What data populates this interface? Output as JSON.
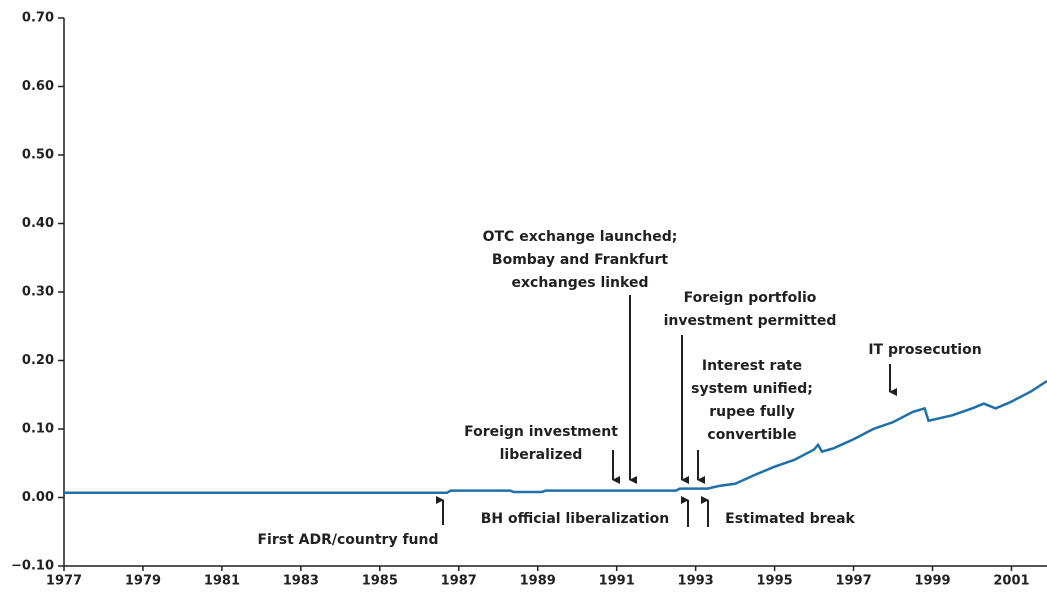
{
  "chart_data": {
    "type": "line",
    "x": [
      1977,
      1986.7,
      1986.8,
      1988.3,
      1988.4,
      1989.1,
      1989.2,
      1992.5,
      1992.6,
      1993.3,
      1993.6,
      1994,
      1994.5,
      1995,
      1995.5,
      1996,
      1996.1,
      1996.2,
      1996.5,
      1997,
      1997.5,
      1998,
      1998.5,
      1998.8,
      1998.9,
      1999.5,
      2000,
      2000.3,
      2000.6,
      2001,
      2001.5,
      2001.9
    ],
    "series": [
      {
        "color": "#1f6fa8",
        "values": [
          0.007,
          0.007,
          0.01,
          0.01,
          0.008,
          0.008,
          0.01,
          0.01,
          0.013,
          0.013,
          0.017,
          0.02,
          0.033,
          0.045,
          0.055,
          0.07,
          0.077,
          0.067,
          0.072,
          0.085,
          0.1,
          0.11,
          0.125,
          0.13,
          0.112,
          0.12,
          0.13,
          0.137,
          0.13,
          0.14,
          0.155,
          0.17
        ]
      }
    ],
    "xlim": [
      1977,
      2001.9
    ],
    "xticks": [
      1977,
      1979,
      1981,
      1983,
      1985,
      1987,
      1989,
      1991,
      1993,
      1995,
      1997,
      1999,
      2001
    ],
    "ylim": [
      -0.1,
      0.7
    ],
    "yticks": [
      {
        "value": -0.1,
        "label": "−0.10"
      },
      {
        "value": 0,
        "label": "0.00"
      },
      {
        "value": 0.1,
        "label": "0.10"
      },
      {
        "value": 0.2,
        "label": "0.20"
      },
      {
        "value": 0.3,
        "label": "0.30"
      },
      {
        "value": 0.4,
        "label": "0.40"
      },
      {
        "value": 0.5,
        "label": "0.50"
      },
      {
        "value": 0.6,
        "label": "0.60"
      },
      {
        "value": 0.7,
        "label": "0.70"
      }
    ],
    "annotations": [
      [
        "First ADR/country fund"
      ],
      [
        "Foreign investment",
        "liberalized"
      ],
      [
        "OTC exchange launched;",
        "Bombay and Frankfurt",
        "exchanges linked"
      ],
      [
        "Foreign portfolio",
        "investment permitted"
      ],
      [
        "Interest rate",
        "system unified;",
        "rupee fully",
        "convertible"
      ],
      [
        "IT prosecution"
      ],
      [
        "BH official liberalization"
      ],
      [
        "Estimated break"
      ]
    ]
  }
}
